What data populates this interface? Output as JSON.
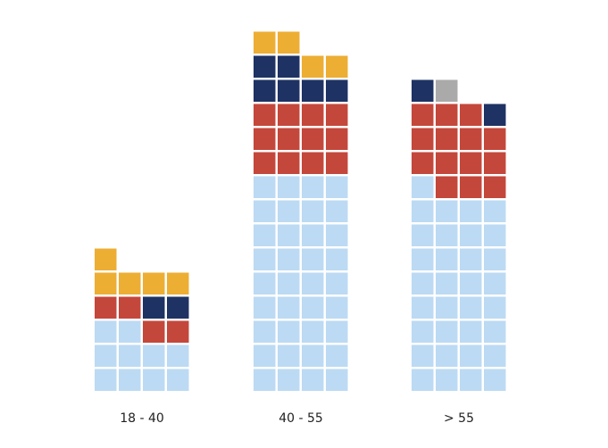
{
  "chart_data": {
    "type": "waffle",
    "title": "",
    "xlabel": "",
    "ylabel": "",
    "columns_per_group": 4,
    "categories": [
      "18 - 40",
      "40 - 55",
      "> 55"
    ],
    "series": [
      {
        "color": "#bcdaf3",
        "values": [
          10,
          36,
          33
        ]
      },
      {
        "color": "#c4473b",
        "values": [
          4,
          12,
          14
        ]
      },
      {
        "color": "#1e3263",
        "values": [
          2,
          6,
          2
        ]
      },
      {
        "color": "#edae34",
        "values": [
          5,
          4,
          0
        ]
      },
      {
        "color": "#aaaaaa",
        "values": [
          0,
          0,
          1
        ]
      }
    ],
    "grid": false,
    "legend": "none"
  }
}
